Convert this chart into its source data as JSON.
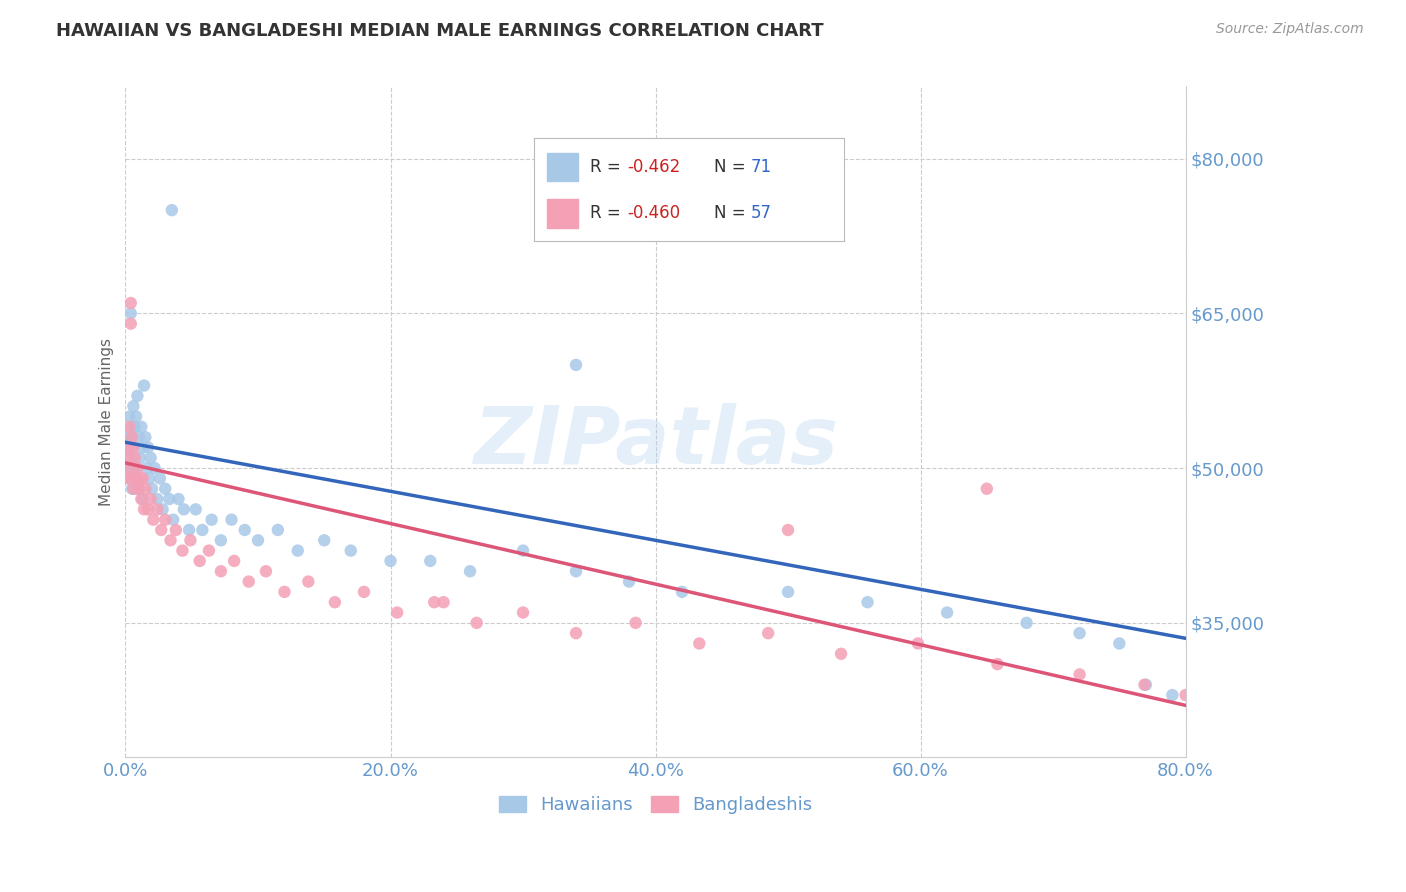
{
  "title": "HAWAIIAN VS BANGLADESHI MEDIAN MALE EARNINGS CORRELATION CHART",
  "source": "Source: ZipAtlas.com",
  "ylabel": "Median Male Earnings",
  "watermark": "ZIPatlas",
  "xlim": [
    0.0,
    0.8
  ],
  "ylim": [
    22000,
    87000
  ],
  "yticks": [
    35000,
    50000,
    65000,
    80000
  ],
  "xticks": [
    0.0,
    0.2,
    0.4,
    0.6,
    0.8
  ],
  "xtick_labels": [
    "0.0%",
    "20.0%",
    "40.0%",
    "60.0%",
    "80.0%"
  ],
  "ytick_labels": [
    "$35,000",
    "$50,000",
    "$65,000",
    "$80,000"
  ],
  "hawaiian_color": "#a8c8e8",
  "bangladeshi_color": "#f4a0b5",
  "hawaiian_line_color": "#3366bb",
  "bangladeshi_line_color": "#dd5577",
  "title_color": "#333333",
  "axis_label_color": "#666666",
  "tick_color": "#6699cc",
  "source_color": "#999999",
  "legend_label1": "Hawaiians",
  "legend_label2": "Bangladeshis",
  "bg_color": "#ffffff",
  "grid_color": "#cccccc",
  "hawaiian_line_x0": 0.0,
  "hawaiian_line_y0": 52500,
  "hawaiian_line_x1": 0.8,
  "hawaiian_line_y1": 33500,
  "bangladeshi_line_x0": 0.0,
  "bangladeshi_line_y0": 50500,
  "bangladeshi_line_x1": 0.8,
  "bangladeshi_line_y1": 27000,
  "hawaiian_x": [
    0.001,
    0.002,
    0.002,
    0.003,
    0.003,
    0.003,
    0.004,
    0.004,
    0.004,
    0.005,
    0.005,
    0.005,
    0.006,
    0.006,
    0.007,
    0.007,
    0.008,
    0.008,
    0.009,
    0.009,
    0.01,
    0.01,
    0.011,
    0.012,
    0.013,
    0.013,
    0.014,
    0.015,
    0.016,
    0.017,
    0.018,
    0.019,
    0.02,
    0.022,
    0.024,
    0.026,
    0.028,
    0.03,
    0.033,
    0.036,
    0.04,
    0.044,
    0.048,
    0.053,
    0.058,
    0.065,
    0.072,
    0.08,
    0.09,
    0.1,
    0.115,
    0.13,
    0.15,
    0.17,
    0.2,
    0.23,
    0.26,
    0.3,
    0.34,
    0.38,
    0.42,
    0.34,
    0.5,
    0.56,
    0.62,
    0.68,
    0.72,
    0.75,
    0.77,
    0.79,
    0.035
  ],
  "hawaiian_y": [
    53000,
    52000,
    50000,
    55000,
    51000,
    49000,
    65000,
    53000,
    50000,
    54000,
    52000,
    48000,
    56000,
    50000,
    54000,
    48000,
    55000,
    50000,
    57000,
    49000,
    53000,
    48000,
    51000,
    54000,
    52000,
    47000,
    58000,
    53000,
    50000,
    52000,
    49000,
    51000,
    48000,
    50000,
    47000,
    49000,
    46000,
    48000,
    47000,
    45000,
    47000,
    46000,
    44000,
    46000,
    44000,
    45000,
    43000,
    45000,
    44000,
    43000,
    44000,
    42000,
    43000,
    42000,
    41000,
    41000,
    40000,
    42000,
    40000,
    39000,
    38000,
    60000,
    38000,
    37000,
    36000,
    35000,
    34000,
    33000,
    29000,
    28000,
    75000
  ],
  "bangladeshi_x": [
    0.001,
    0.002,
    0.002,
    0.003,
    0.003,
    0.004,
    0.004,
    0.005,
    0.005,
    0.006,
    0.006,
    0.007,
    0.008,
    0.009,
    0.01,
    0.011,
    0.012,
    0.013,
    0.014,
    0.015,
    0.017,
    0.019,
    0.021,
    0.024,
    0.027,
    0.03,
    0.034,
    0.038,
    0.043,
    0.049,
    0.056,
    0.063,
    0.072,
    0.082,
    0.093,
    0.106,
    0.12,
    0.138,
    0.158,
    0.18,
    0.205,
    0.233,
    0.265,
    0.3,
    0.34,
    0.385,
    0.433,
    0.485,
    0.54,
    0.598,
    0.658,
    0.72,
    0.769,
    0.8,
    0.65,
    0.5,
    0.24
  ],
  "bangladeshi_y": [
    52000,
    51000,
    49000,
    54000,
    50000,
    66000,
    64000,
    53000,
    49000,
    52000,
    48000,
    51000,
    49000,
    50000,
    48000,
    49000,
    47000,
    49000,
    46000,
    48000,
    46000,
    47000,
    45000,
    46000,
    44000,
    45000,
    43000,
    44000,
    42000,
    43000,
    41000,
    42000,
    40000,
    41000,
    39000,
    40000,
    38000,
    39000,
    37000,
    38000,
    36000,
    37000,
    35000,
    36000,
    34000,
    35000,
    33000,
    34000,
    32000,
    33000,
    31000,
    30000,
    29000,
    28000,
    48000,
    44000,
    37000
  ]
}
